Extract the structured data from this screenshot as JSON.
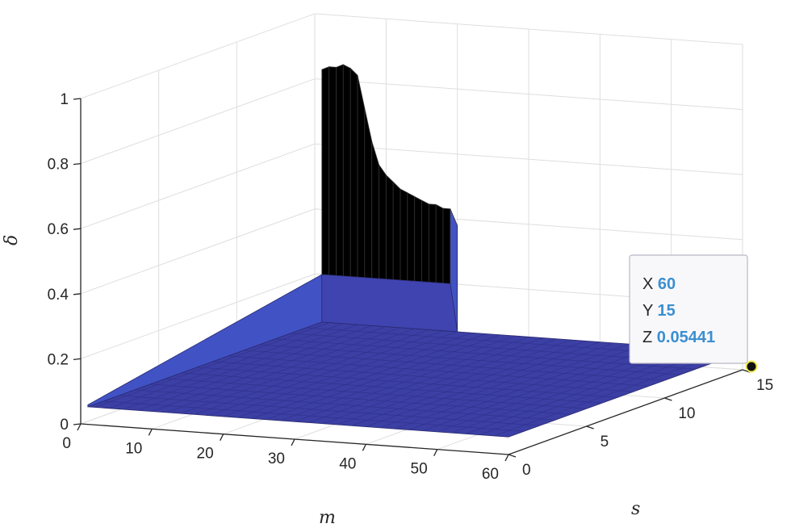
{
  "chart_data": {
    "type": "surface",
    "xlabel": "m",
    "ylabel": "s",
    "zlabel": "δ",
    "xlim": [
      0,
      60
    ],
    "ylim": [
      0,
      15
    ],
    "zlim": [
      0,
      1
    ],
    "xticks": [
      0,
      10,
      20,
      30,
      40,
      50,
      60
    ],
    "yticks": [
      0,
      5,
      10,
      15
    ],
    "zticks": [
      0,
      0.2,
      0.4,
      0.6,
      0.8,
      1
    ],
    "xtick_labels": [
      "0",
      "10",
      "20",
      "30",
      "40",
      "50",
      "60"
    ],
    "ytick_labels": [
      "0",
      "5",
      "10",
      "15"
    ],
    "ztick_labels": [
      "0",
      "0.2",
      "0.4",
      "0.6",
      "0.8",
      "1"
    ],
    "colormap": "parula",
    "grid": true,
    "front_edge_s15": {
      "x": [
        1,
        2,
        3,
        4,
        5,
        6,
        7,
        8,
        9,
        10,
        11,
        12,
        13,
        14,
        15,
        16,
        17,
        18,
        19
      ],
      "z": [
        0.83,
        0.84,
        0.84,
        0.85,
        0.84,
        0.82,
        0.72,
        0.62,
        0.55,
        0.52,
        0.5,
        0.48,
        0.47,
        0.46,
        0.45,
        0.44,
        0.44,
        0.43,
        0.43
      ]
    },
    "plane_value": 0.054,
    "datatip": {
      "x_label": "X",
      "x_value": "60",
      "y_label": "Y",
      "y_value": "15",
      "z_label": "Z",
      "z_value": "0.05441"
    }
  }
}
